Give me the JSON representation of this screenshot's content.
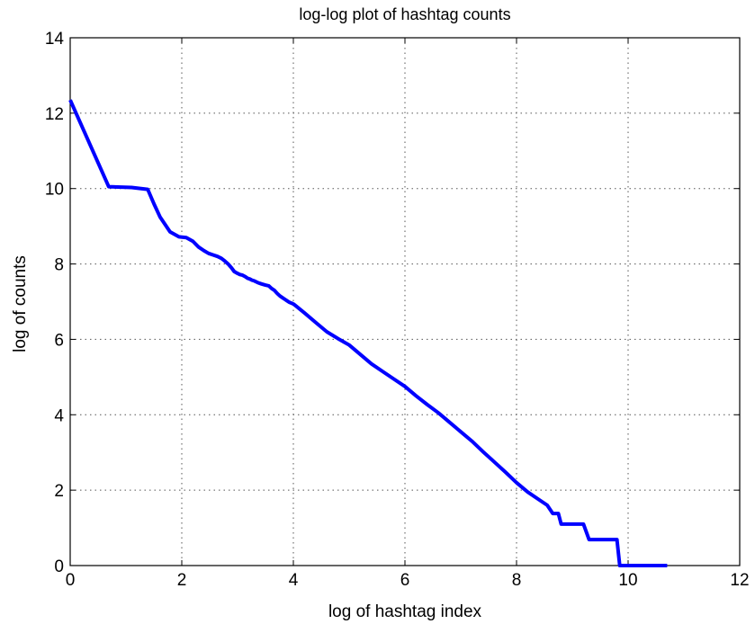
{
  "chart_data": {
    "type": "line",
    "title": "log-log plot of hashtag counts",
    "xlabel": "log of hashtag index",
    "ylabel": "log of counts",
    "xlim": [
      0,
      12
    ],
    "ylim": [
      0,
      14
    ],
    "xticks": [
      0,
      2,
      4,
      6,
      8,
      10,
      12
    ],
    "yticks": [
      0,
      2,
      4,
      6,
      8,
      10,
      12,
      14
    ],
    "grid": true,
    "grid_style": "dotted",
    "line_color": "#0000ff",
    "series": [
      {
        "x": [
          0,
          0.69,
          1.1,
          1.39,
          1.5,
          1.61,
          1.79,
          1.95,
          2.08,
          2.2,
          2.3,
          2.4,
          2.48,
          2.56,
          2.64,
          2.71,
          2.77,
          2.83,
          2.89,
          2.94,
          3.0,
          3.04,
          3.09,
          3.14,
          3.18,
          3.22,
          3.26,
          3.3,
          3.37,
          3.43,
          3.5,
          3.56,
          3.61,
          3.66,
          3.71,
          3.76,
          3.81,
          3.85,
          3.89,
          3.93,
          3.97,
          4.01,
          4.2,
          4.4,
          4.6,
          4.8,
          5.0,
          5.2,
          5.4,
          5.6,
          5.8,
          6.0,
          6.2,
          6.4,
          6.6,
          6.8,
          7.0,
          7.2,
          7.4,
          7.6,
          7.8,
          8.0,
          8.2,
          8.4,
          8.55,
          8.65,
          8.75,
          8.8,
          8.9,
          9.0,
          9.1,
          9.2,
          9.3,
          9.4,
          9.5,
          9.6,
          9.7,
          9.8,
          9.85,
          9.9,
          10.0,
          10.3,
          10.7
        ],
        "y": [
          12.35,
          10.05,
          10.03,
          9.98,
          9.6,
          9.25,
          8.85,
          8.72,
          8.7,
          8.6,
          8.45,
          8.35,
          8.28,
          8.24,
          8.2,
          8.15,
          8.08,
          8.0,
          7.9,
          7.8,
          7.75,
          7.72,
          7.7,
          7.66,
          7.62,
          7.6,
          7.57,
          7.55,
          7.5,
          7.47,
          7.44,
          7.42,
          7.35,
          7.3,
          7.22,
          7.15,
          7.1,
          7.06,
          7.02,
          6.98,
          6.96,
          6.93,
          6.7,
          6.45,
          6.2,
          6.02,
          5.85,
          5.6,
          5.35,
          5.15,
          4.95,
          4.75,
          4.5,
          4.27,
          4.05,
          3.8,
          3.55,
          3.3,
          3.02,
          2.75,
          2.48,
          2.2,
          1.95,
          1.75,
          1.6,
          1.38,
          1.38,
          1.1,
          1.1,
          1.1,
          1.1,
          1.1,
          0.69,
          0.69,
          0.69,
          0.69,
          0.69,
          0.69,
          0.0,
          0.0,
          0.0,
          0.0,
          0.0
        ]
      }
    ]
  }
}
